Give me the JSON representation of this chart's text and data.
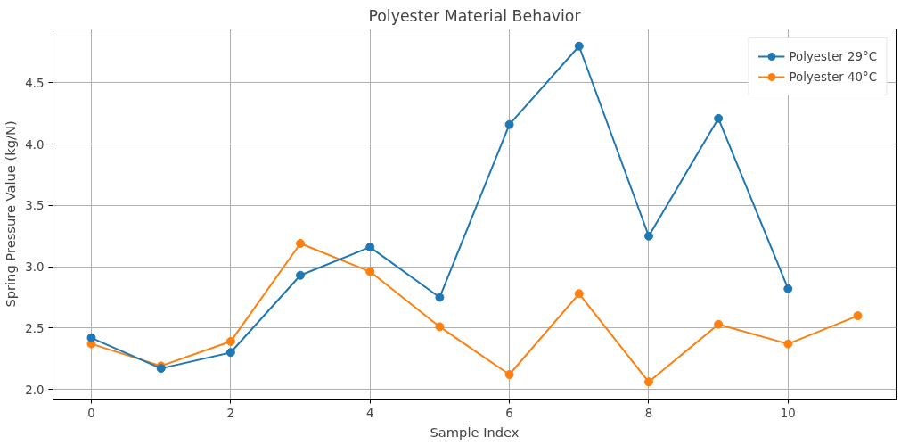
{
  "chart_data": {
    "type": "line",
    "title": "Polyester Material Behavior",
    "xlabel": "Sample Index",
    "ylabel": "Spring Pressure Value (kg/N)",
    "xlim": [
      -0.55,
      11.55
    ],
    "xticks": [
      0,
      2,
      4,
      6,
      8,
      10
    ],
    "ylim": [
      1.92,
      4.94
    ],
    "yticks": [
      {
        "value": 2.0,
        "label": "2.0"
      },
      {
        "value": 2.5,
        "label": "2.5"
      },
      {
        "value": 3.0,
        "label": "3.0"
      },
      {
        "value": 3.5,
        "label": "3.5"
      },
      {
        "value": 4.0,
        "label": "4.0"
      },
      {
        "value": 4.5,
        "label": "4.5"
      }
    ],
    "grid": true,
    "legend": "top right",
    "marker": "circle",
    "line_style": "solid",
    "series": [
      {
        "name": "Polyester 29°C",
        "color": "#1f77b4",
        "x": [
          0,
          1,
          2,
          3,
          4,
          5,
          6,
          7,
          8,
          9,
          10
        ],
        "values": [
          2.42,
          2.17,
          2.3,
          2.93,
          3.16,
          2.75,
          4.16,
          4.8,
          3.25,
          4.21,
          2.82
        ]
      },
      {
        "name": "Polyester 40°C",
        "color": "#ff7f0e",
        "x": [
          0,
          1,
          2,
          3,
          4,
          5,
          6,
          7,
          8,
          9,
          10,
          11
        ],
        "values": [
          2.37,
          2.19,
          2.39,
          3.19,
          2.96,
          2.51,
          2.12,
          2.78,
          2.06,
          2.53,
          2.37,
          2.6
        ]
      }
    ]
  }
}
